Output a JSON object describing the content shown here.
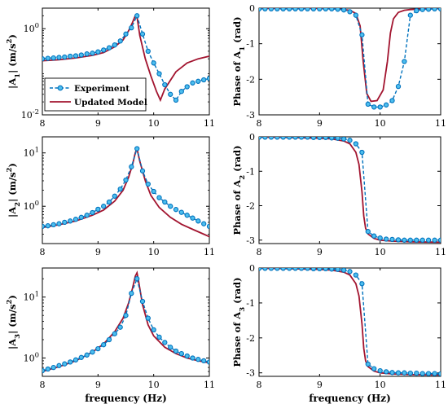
{
  "chart_data": [
    {
      "type": "line",
      "scale": "log",
      "ylabel": "|A1| (m/s2)",
      "ylabel_parts": [
        "|A",
        "1",
        "| (m/s",
        "2",
        ")"
      ],
      "xlabel": "",
      "xlim": [
        8,
        11
      ],
      "ylim": [
        0.01,
        3
      ],
      "xticks": [
        "8",
        "9",
        "10",
        "11"
      ],
      "yticks": [
        {
          "v": 1,
          "b": "10",
          "e": "0"
        },
        {
          "v": 0.01,
          "b": "10",
          "e": "-2"
        }
      ],
      "legend": {
        "position": "bottom-left",
        "entries": [
          "Experiment",
          "Updated Model"
        ]
      },
      "series": [
        {
          "name": "Experiment",
          "style": "dashed-circle",
          "x": [
            8.0,
            8.1,
            8.2,
            8.3,
            8.4,
            8.5,
            8.6,
            8.7,
            8.8,
            8.9,
            9.0,
            9.1,
            9.2,
            9.3,
            9.4,
            9.5,
            9.6,
            9.7,
            9.8,
            9.9,
            10.0,
            10.1,
            10.2,
            10.3,
            10.4,
            10.5,
            10.6,
            10.7,
            10.8,
            10.9,
            11.0
          ],
          "y": [
            0.2,
            0.205,
            0.21,
            0.215,
            0.22,
            0.23,
            0.235,
            0.245,
            0.26,
            0.27,
            0.29,
            0.32,
            0.36,
            0.42,
            0.52,
            0.75,
            1.05,
            2.0,
            0.75,
            0.3,
            0.16,
            0.09,
            0.05,
            0.03,
            0.022,
            0.035,
            0.045,
            0.055,
            0.06,
            0.065,
            0.07
          ]
        },
        {
          "name": "Updated Model",
          "style": "solid",
          "x": [
            8.0,
            8.3,
            8.6,
            8.9,
            9.1,
            9.3,
            9.45,
            9.55,
            9.62,
            9.67,
            9.7,
            9.75,
            9.85,
            9.95,
            10.05,
            10.12,
            10.2,
            10.4,
            10.6,
            10.8,
            11.0
          ],
          "y": [
            0.18,
            0.19,
            0.21,
            0.24,
            0.28,
            0.38,
            0.55,
            0.9,
            1.4,
            2.0,
            1.9,
            0.7,
            0.2,
            0.08,
            0.035,
            0.022,
            0.04,
            0.1,
            0.16,
            0.2,
            0.23
          ]
        }
      ]
    },
    {
      "type": "line",
      "scale": "linear",
      "ylabel": "Phase of A1 (rad)",
      "ylabel_parts": [
        "Phase of A",
        "1",
        " (rad)"
      ],
      "xlabel": "",
      "xlim": [
        8,
        11
      ],
      "ylim": [
        -3,
        0
      ],
      "xticks": [
        "8",
        "9",
        "10",
        "11"
      ],
      "yticks": [
        "0",
        "-1",
        "-2",
        "-3"
      ],
      "series": [
        {
          "name": "Experiment",
          "style": "dashed-circle",
          "x": [
            8.0,
            8.1,
            8.2,
            8.3,
            8.4,
            8.5,
            8.6,
            8.7,
            8.8,
            8.9,
            9.0,
            9.1,
            9.2,
            9.3,
            9.4,
            9.5,
            9.6,
            9.7,
            9.8,
            9.9,
            10.0,
            10.1,
            10.2,
            10.3,
            10.4,
            10.5,
            10.6,
            10.7,
            10.8,
            10.9,
            11.0
          ],
          "y": [
            -0.02,
            -0.02,
            -0.02,
            -0.02,
            -0.02,
            -0.02,
            -0.02,
            -0.02,
            -0.02,
            -0.02,
            -0.02,
            -0.02,
            -0.02,
            -0.03,
            -0.05,
            -0.1,
            -0.2,
            -0.75,
            -2.7,
            -2.78,
            -2.78,
            -2.72,
            -2.6,
            -2.2,
            -1.5,
            -0.2,
            -0.07,
            -0.04,
            -0.03,
            -0.02,
            -0.02
          ]
        },
        {
          "name": "Updated Model",
          "style": "solid",
          "x": [
            8.0,
            9.0,
            9.3,
            9.5,
            9.6,
            9.67,
            9.72,
            9.78,
            9.85,
            9.95,
            10.05,
            10.12,
            10.17,
            10.22,
            10.3,
            10.4,
            10.5,
            10.7,
            11.0
          ],
          "y": [
            -0.01,
            -0.01,
            -0.02,
            -0.06,
            -0.15,
            -0.5,
            -1.5,
            -2.4,
            -2.62,
            -2.6,
            -2.3,
            -1.5,
            -0.7,
            -0.3,
            -0.12,
            -0.06,
            -0.04,
            -0.02,
            -0.01
          ]
        }
      ]
    },
    {
      "type": "line",
      "scale": "log",
      "ylabel": "|A2| (m/s2)",
      "ylabel_parts": [
        "|A",
        "2",
        "| (m/s",
        "2",
        ")"
      ],
      "xlabel": "",
      "xlim": [
        8,
        11
      ],
      "ylim": [
        0.2,
        20
      ],
      "xticks": [
        "8",
        "9",
        "10",
        "11"
      ],
      "yticks": [
        {
          "v": 10,
          "b": "10",
          "e": "1"
        },
        {
          "v": 1,
          "b": "10",
          "e": "0"
        }
      ],
      "series": [
        {
          "name": "Experiment",
          "style": "dashed-circle",
          "x": [
            8.0,
            8.1,
            8.2,
            8.3,
            8.4,
            8.5,
            8.6,
            8.7,
            8.8,
            8.9,
            9.0,
            9.1,
            9.2,
            9.3,
            9.4,
            9.5,
            9.6,
            9.7,
            9.8,
            9.9,
            10.0,
            10.1,
            10.2,
            10.3,
            10.4,
            10.5,
            10.6,
            10.7,
            10.8,
            10.9,
            11.0
          ],
          "y": [
            0.42,
            0.43,
            0.45,
            0.47,
            0.5,
            0.53,
            0.57,
            0.62,
            0.68,
            0.76,
            0.88,
            1.0,
            1.2,
            1.55,
            2.1,
            3.1,
            5.5,
            12.0,
            4.6,
            2.6,
            1.9,
            1.45,
            1.2,
            1.0,
            0.87,
            0.77,
            0.68,
            0.6,
            0.53,
            0.47,
            0.42
          ]
        },
        {
          "name": "Updated Model",
          "style": "solid",
          "x": [
            8.0,
            8.3,
            8.6,
            8.9,
            9.1,
            9.3,
            9.45,
            9.55,
            9.62,
            9.67,
            9.7,
            9.75,
            9.85,
            9.95,
            10.1,
            10.3,
            10.5,
            10.7,
            10.9,
            11.0
          ],
          "y": [
            0.4,
            0.45,
            0.53,
            0.68,
            0.85,
            1.25,
            2.0,
            3.5,
            6.0,
            10.0,
            12.0,
            7.0,
            3.0,
            1.6,
            0.95,
            0.62,
            0.46,
            0.37,
            0.3,
            0.27
          ]
        }
      ]
    },
    {
      "type": "line",
      "scale": "linear",
      "ylabel": "Phase of A2 (rad)",
      "ylabel_parts": [
        "Phase of A",
        "2",
        " (rad)"
      ],
      "xlabel": "",
      "xlim": [
        8,
        11
      ],
      "ylim": [
        -3.1,
        0
      ],
      "xticks": [
        "8",
        "9",
        "10",
        "11"
      ],
      "yticks": [
        "0",
        "-1",
        "-2",
        "-3"
      ],
      "series": [
        {
          "name": "Experiment",
          "style": "dashed-circle",
          "x": [
            8.0,
            8.1,
            8.2,
            8.3,
            8.4,
            8.5,
            8.6,
            8.7,
            8.8,
            8.9,
            9.0,
            9.1,
            9.2,
            9.3,
            9.4,
            9.5,
            9.6,
            9.7,
            9.8,
            9.9,
            10.0,
            10.1,
            10.2,
            10.3,
            10.4,
            10.5,
            10.6,
            10.7,
            10.8,
            10.9,
            11.0
          ],
          "y": [
            -0.01,
            -0.01,
            -0.01,
            -0.01,
            -0.01,
            -0.01,
            -0.01,
            -0.01,
            -0.01,
            -0.02,
            -0.02,
            -0.02,
            -0.03,
            -0.04,
            -0.06,
            -0.1,
            -0.2,
            -0.45,
            -2.75,
            -2.88,
            -2.94,
            -2.97,
            -2.98,
            -2.99,
            -3.0,
            -3.0,
            -3.0,
            -3.0,
            -3.0,
            -3.0,
            -3.0
          ]
        },
        {
          "name": "Updated Model",
          "style": "solid",
          "x": [
            8.0,
            8.5,
            9.0,
            9.2,
            9.4,
            9.5,
            9.6,
            9.65,
            9.7,
            9.73,
            9.76,
            9.8,
            9.9,
            10.0,
            10.2,
            10.5,
            11.0
          ],
          "y": [
            -0.01,
            -0.02,
            -0.04,
            -0.06,
            -0.12,
            -0.2,
            -0.45,
            -0.8,
            -1.6,
            -2.3,
            -2.65,
            -2.82,
            -2.95,
            -3.0,
            -3.03,
            -3.05,
            -3.06
          ]
        }
      ]
    },
    {
      "type": "line",
      "scale": "log",
      "ylabel": "|A3| (m/s2)",
      "ylabel_parts": [
        "|A",
        "3",
        "| (m/s",
        "2",
        ")"
      ],
      "xlabel": "frequency (Hz)",
      "xlim": [
        8,
        11
      ],
      "ylim": [
        0.5,
        30
      ],
      "xticks": [
        "8",
        "9",
        "10",
        "11"
      ],
      "yticks": [
        {
          "v": 10,
          "b": "10",
          "e": "1"
        },
        {
          "v": 1,
          "b": "10",
          "e": "0"
        }
      ],
      "series": [
        {
          "name": "Experiment",
          "style": "dashed-circle",
          "x": [
            8.0,
            8.1,
            8.2,
            8.3,
            8.4,
            8.5,
            8.6,
            8.7,
            8.8,
            8.9,
            9.0,
            9.1,
            9.2,
            9.3,
            9.4,
            9.5,
            9.6,
            9.7,
            9.8,
            9.9,
            10.0,
            10.1,
            10.2,
            10.3,
            10.4,
            10.5,
            10.6,
            10.7,
            10.8,
            10.9,
            11.0
          ],
          "y": [
            0.62,
            0.66,
            0.7,
            0.75,
            0.8,
            0.86,
            0.93,
            1.02,
            1.12,
            1.25,
            1.42,
            1.65,
            2.0,
            2.5,
            3.2,
            5.0,
            11.5,
            20.0,
            8.5,
            4.5,
            2.9,
            2.2,
            1.8,
            1.5,
            1.3,
            1.18,
            1.08,
            1.0,
            0.95,
            0.9,
            0.86
          ]
        },
        {
          "name": "Updated Model",
          "style": "solid",
          "x": [
            8.0,
            8.3,
            8.6,
            8.9,
            9.1,
            9.3,
            9.45,
            9.55,
            9.62,
            9.67,
            9.7,
            9.73,
            9.8,
            9.9,
            10.0,
            10.2,
            10.4,
            10.6,
            10.8,
            11.0
          ],
          "y": [
            0.6,
            0.72,
            0.9,
            1.25,
            1.7,
            2.7,
            4.5,
            8.0,
            14.0,
            22.0,
            25.0,
            18.0,
            7.5,
            3.5,
            2.3,
            1.5,
            1.18,
            1.0,
            0.9,
            0.83
          ]
        }
      ]
    },
    {
      "type": "line",
      "scale": "linear",
      "ylabel": "Phase of A3 (rad)",
      "ylabel_parts": [
        "Phase of A",
        "3",
        " (rad)"
      ],
      "xlabel": "frequency (Hz)",
      "xlim": [
        8,
        11
      ],
      "ylim": [
        -3.1,
        0
      ],
      "xticks": [
        "8",
        "9",
        "10",
        "11"
      ],
      "yticks": [
        "0",
        "-1",
        "-2",
        "-3"
      ],
      "series": [
        {
          "name": "Experiment",
          "style": "dashed-circle",
          "x": [
            8.0,
            8.1,
            8.2,
            8.3,
            8.4,
            8.5,
            8.6,
            8.7,
            8.8,
            8.9,
            9.0,
            9.1,
            9.2,
            9.3,
            9.4,
            9.5,
            9.6,
            9.7,
            9.8,
            9.9,
            10.0,
            10.1,
            10.2,
            10.3,
            10.4,
            10.5,
            10.6,
            10.7,
            10.8,
            10.9,
            11.0
          ],
          "y": [
            -0.01,
            -0.01,
            -0.01,
            -0.01,
            -0.01,
            -0.01,
            -0.01,
            -0.01,
            -0.01,
            -0.02,
            -0.02,
            -0.02,
            -0.03,
            -0.04,
            -0.06,
            -0.1,
            -0.2,
            -0.45,
            -2.75,
            -2.88,
            -2.94,
            -2.97,
            -2.99,
            -3.0,
            -3.0,
            -3.01,
            -3.01,
            -3.02,
            -3.02,
            -3.02,
            -3.03
          ]
        },
        {
          "name": "Updated Model",
          "style": "solid",
          "x": [
            8.0,
            8.5,
            9.0,
            9.2,
            9.4,
            9.5,
            9.6,
            9.65,
            9.7,
            9.73,
            9.76,
            9.8,
            9.9,
            10.0,
            10.2,
            10.5,
            11.0
          ],
          "y": [
            -0.01,
            -0.02,
            -0.04,
            -0.06,
            -0.12,
            -0.2,
            -0.45,
            -0.8,
            -1.6,
            -2.3,
            -2.65,
            -2.82,
            -2.95,
            -3.0,
            -3.03,
            -3.05,
            -3.06
          ]
        }
      ]
    }
  ],
  "colors": {
    "experiment": "#0072BD",
    "marker_fill": "#4DBEEE",
    "model": "#A2142F",
    "axis": "#000000"
  }
}
